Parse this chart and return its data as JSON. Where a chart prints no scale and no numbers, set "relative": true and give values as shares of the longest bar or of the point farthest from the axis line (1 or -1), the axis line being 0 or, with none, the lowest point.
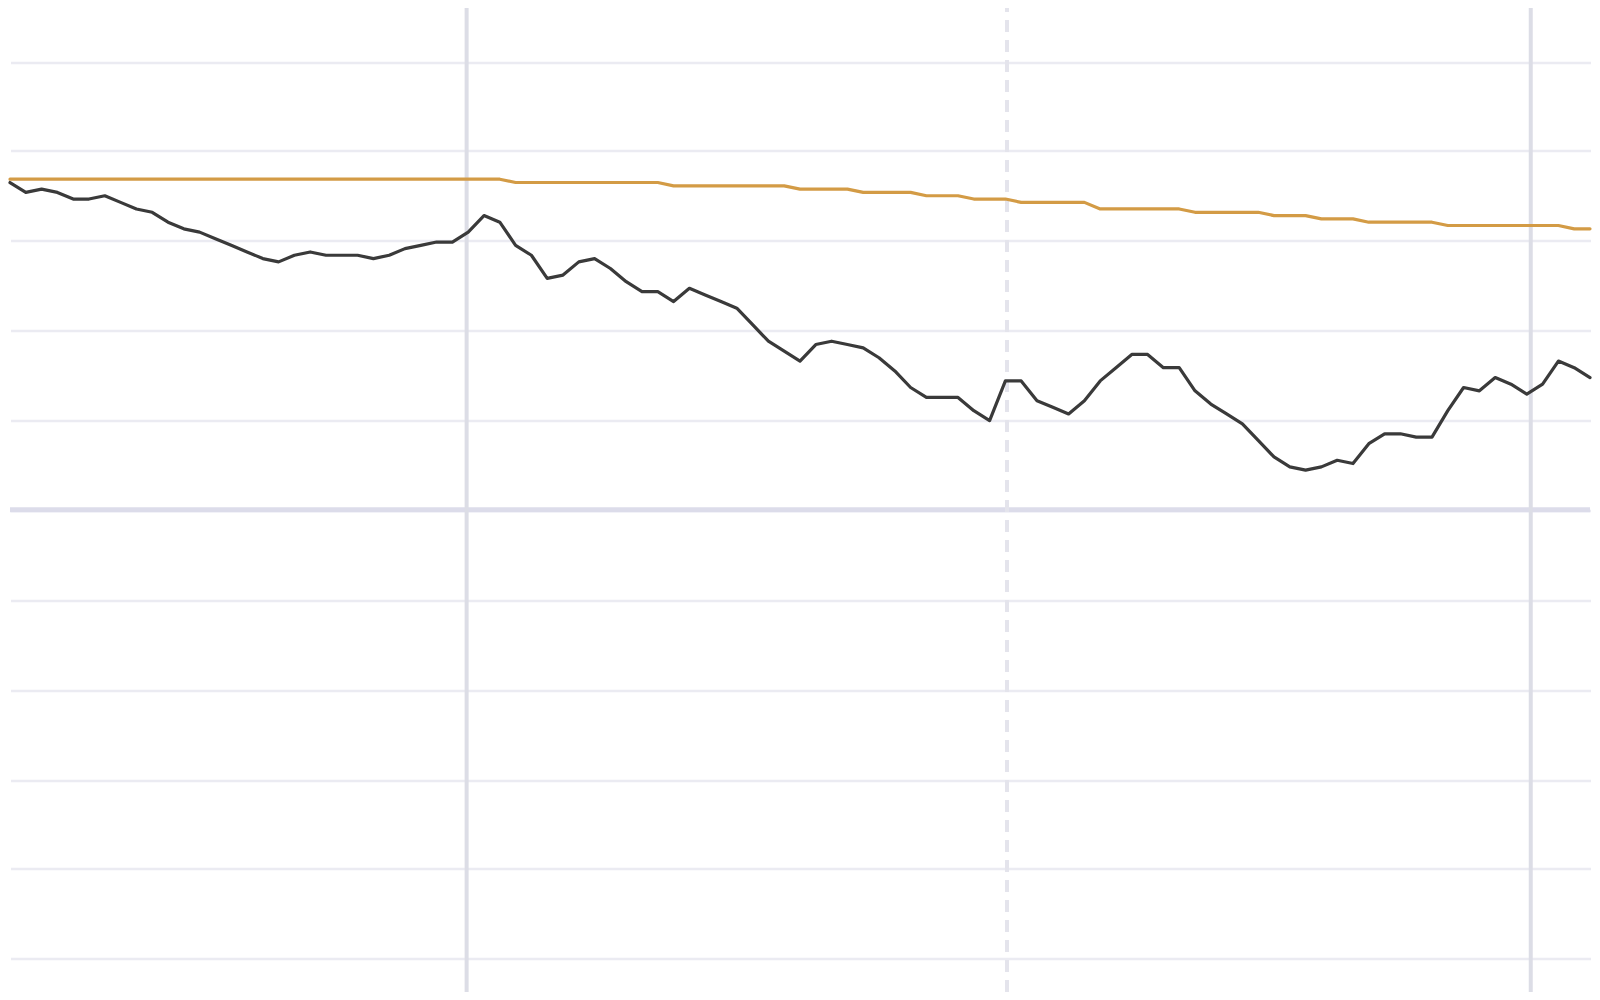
{
  "chart_data": {
    "type": "line",
    "relative": true,
    "grid": "y",
    "categories": [
      null,
      null,
      null,
      null,
      null,
      null,
      null,
      null,
      null,
      null,
      null,
      null,
      null,
      null,
      null,
      null,
      null,
      null,
      null,
      null,
      null,
      null,
      null,
      null,
      null,
      null,
      null,
      null,
      null,
      null,
      null,
      null,
      null,
      null,
      null,
      null,
      null,
      null,
      null,
      null,
      null,
      null,
      null,
      null,
      null,
      null,
      null,
      null,
      null,
      null,
      null,
      null,
      null,
      null,
      null,
      null,
      null,
      null,
      null,
      null,
      null,
      null,
      null,
      null,
      null,
      null,
      null,
      null,
      null,
      null,
      null,
      null,
      null,
      null,
      null,
      null,
      null,
      null,
      null,
      null,
      null,
      null,
      null,
      null,
      null,
      null,
      null,
      null,
      null,
      null,
      null,
      null,
      null,
      null,
      null,
      null,
      null,
      null,
      null,
      null,
      null
    ],
    "series": [
      {
        "color": "#d39b45",
        "values": [
          1.0,
          1.0,
          1.0,
          1.0,
          1.0,
          1.0,
          1.0,
          1.0,
          1.0,
          1.0,
          1.0,
          1.0,
          1.0,
          1.0,
          1.0,
          1.0,
          1.0,
          1.0,
          1.0,
          1.0,
          1.0,
          1.0,
          1.0,
          1.0,
          1.0,
          1.0,
          1.0,
          1.0,
          1.0,
          1.0,
          1.0,
          1.0,
          0.99,
          0.99,
          0.99,
          0.99,
          0.99,
          0.99,
          0.99,
          0.99,
          0.99,
          0.99,
          0.98,
          0.98,
          0.98,
          0.98,
          0.98,
          0.98,
          0.98,
          0.98,
          0.97,
          0.97,
          0.97,
          0.97,
          0.96,
          0.96,
          0.96,
          0.96,
          0.95,
          0.95,
          0.95,
          0.94,
          0.94,
          0.94,
          0.93,
          0.93,
          0.93,
          0.93,
          0.93,
          0.91,
          0.91,
          0.91,
          0.91,
          0.91,
          0.91,
          0.9,
          0.9,
          0.9,
          0.9,
          0.9,
          0.89,
          0.89,
          0.89,
          0.88,
          0.88,
          0.88,
          0.87,
          0.87,
          0.87,
          0.87,
          0.87,
          0.86,
          0.86,
          0.86,
          0.86,
          0.86,
          0.86,
          0.86,
          0.86,
          0.85,
          0.85
        ]
      },
      {
        "color": "#3a3a3a",
        "values": [
          0.99,
          0.96,
          0.97,
          0.96,
          0.94,
          0.94,
          0.95,
          0.93,
          0.91,
          0.9,
          0.87,
          0.85,
          0.84,
          0.82,
          0.8,
          0.78,
          0.76,
          0.75,
          0.77,
          0.78,
          0.77,
          0.77,
          0.77,
          0.76,
          0.77,
          0.79,
          0.8,
          0.81,
          0.81,
          0.84,
          0.89,
          0.87,
          0.8,
          0.77,
          0.7,
          0.71,
          0.75,
          0.76,
          0.73,
          0.69,
          0.66,
          0.66,
          0.63,
          0.67,
          0.65,
          0.63,
          0.61,
          0.56,
          0.51,
          0.48,
          0.45,
          0.5,
          0.51,
          0.5,
          0.49,
          0.46,
          0.42,
          0.37,
          0.34,
          0.34,
          0.34,
          0.3,
          0.27,
          0.39,
          0.39,
          0.33,
          0.31,
          0.29,
          0.33,
          0.39,
          0.43,
          0.47,
          0.47,
          0.43,
          0.43,
          0.36,
          0.32,
          0.29,
          0.26,
          0.21,
          0.16,
          0.13,
          0.12,
          0.13,
          0.15,
          0.14,
          0.2,
          0.23,
          0.23,
          0.22,
          0.22,
          0.3,
          0.37,
          0.36,
          0.4,
          0.38,
          0.35,
          0.38,
          0.45,
          0.43,
          0.4
        ]
      }
    ]
  }
}
